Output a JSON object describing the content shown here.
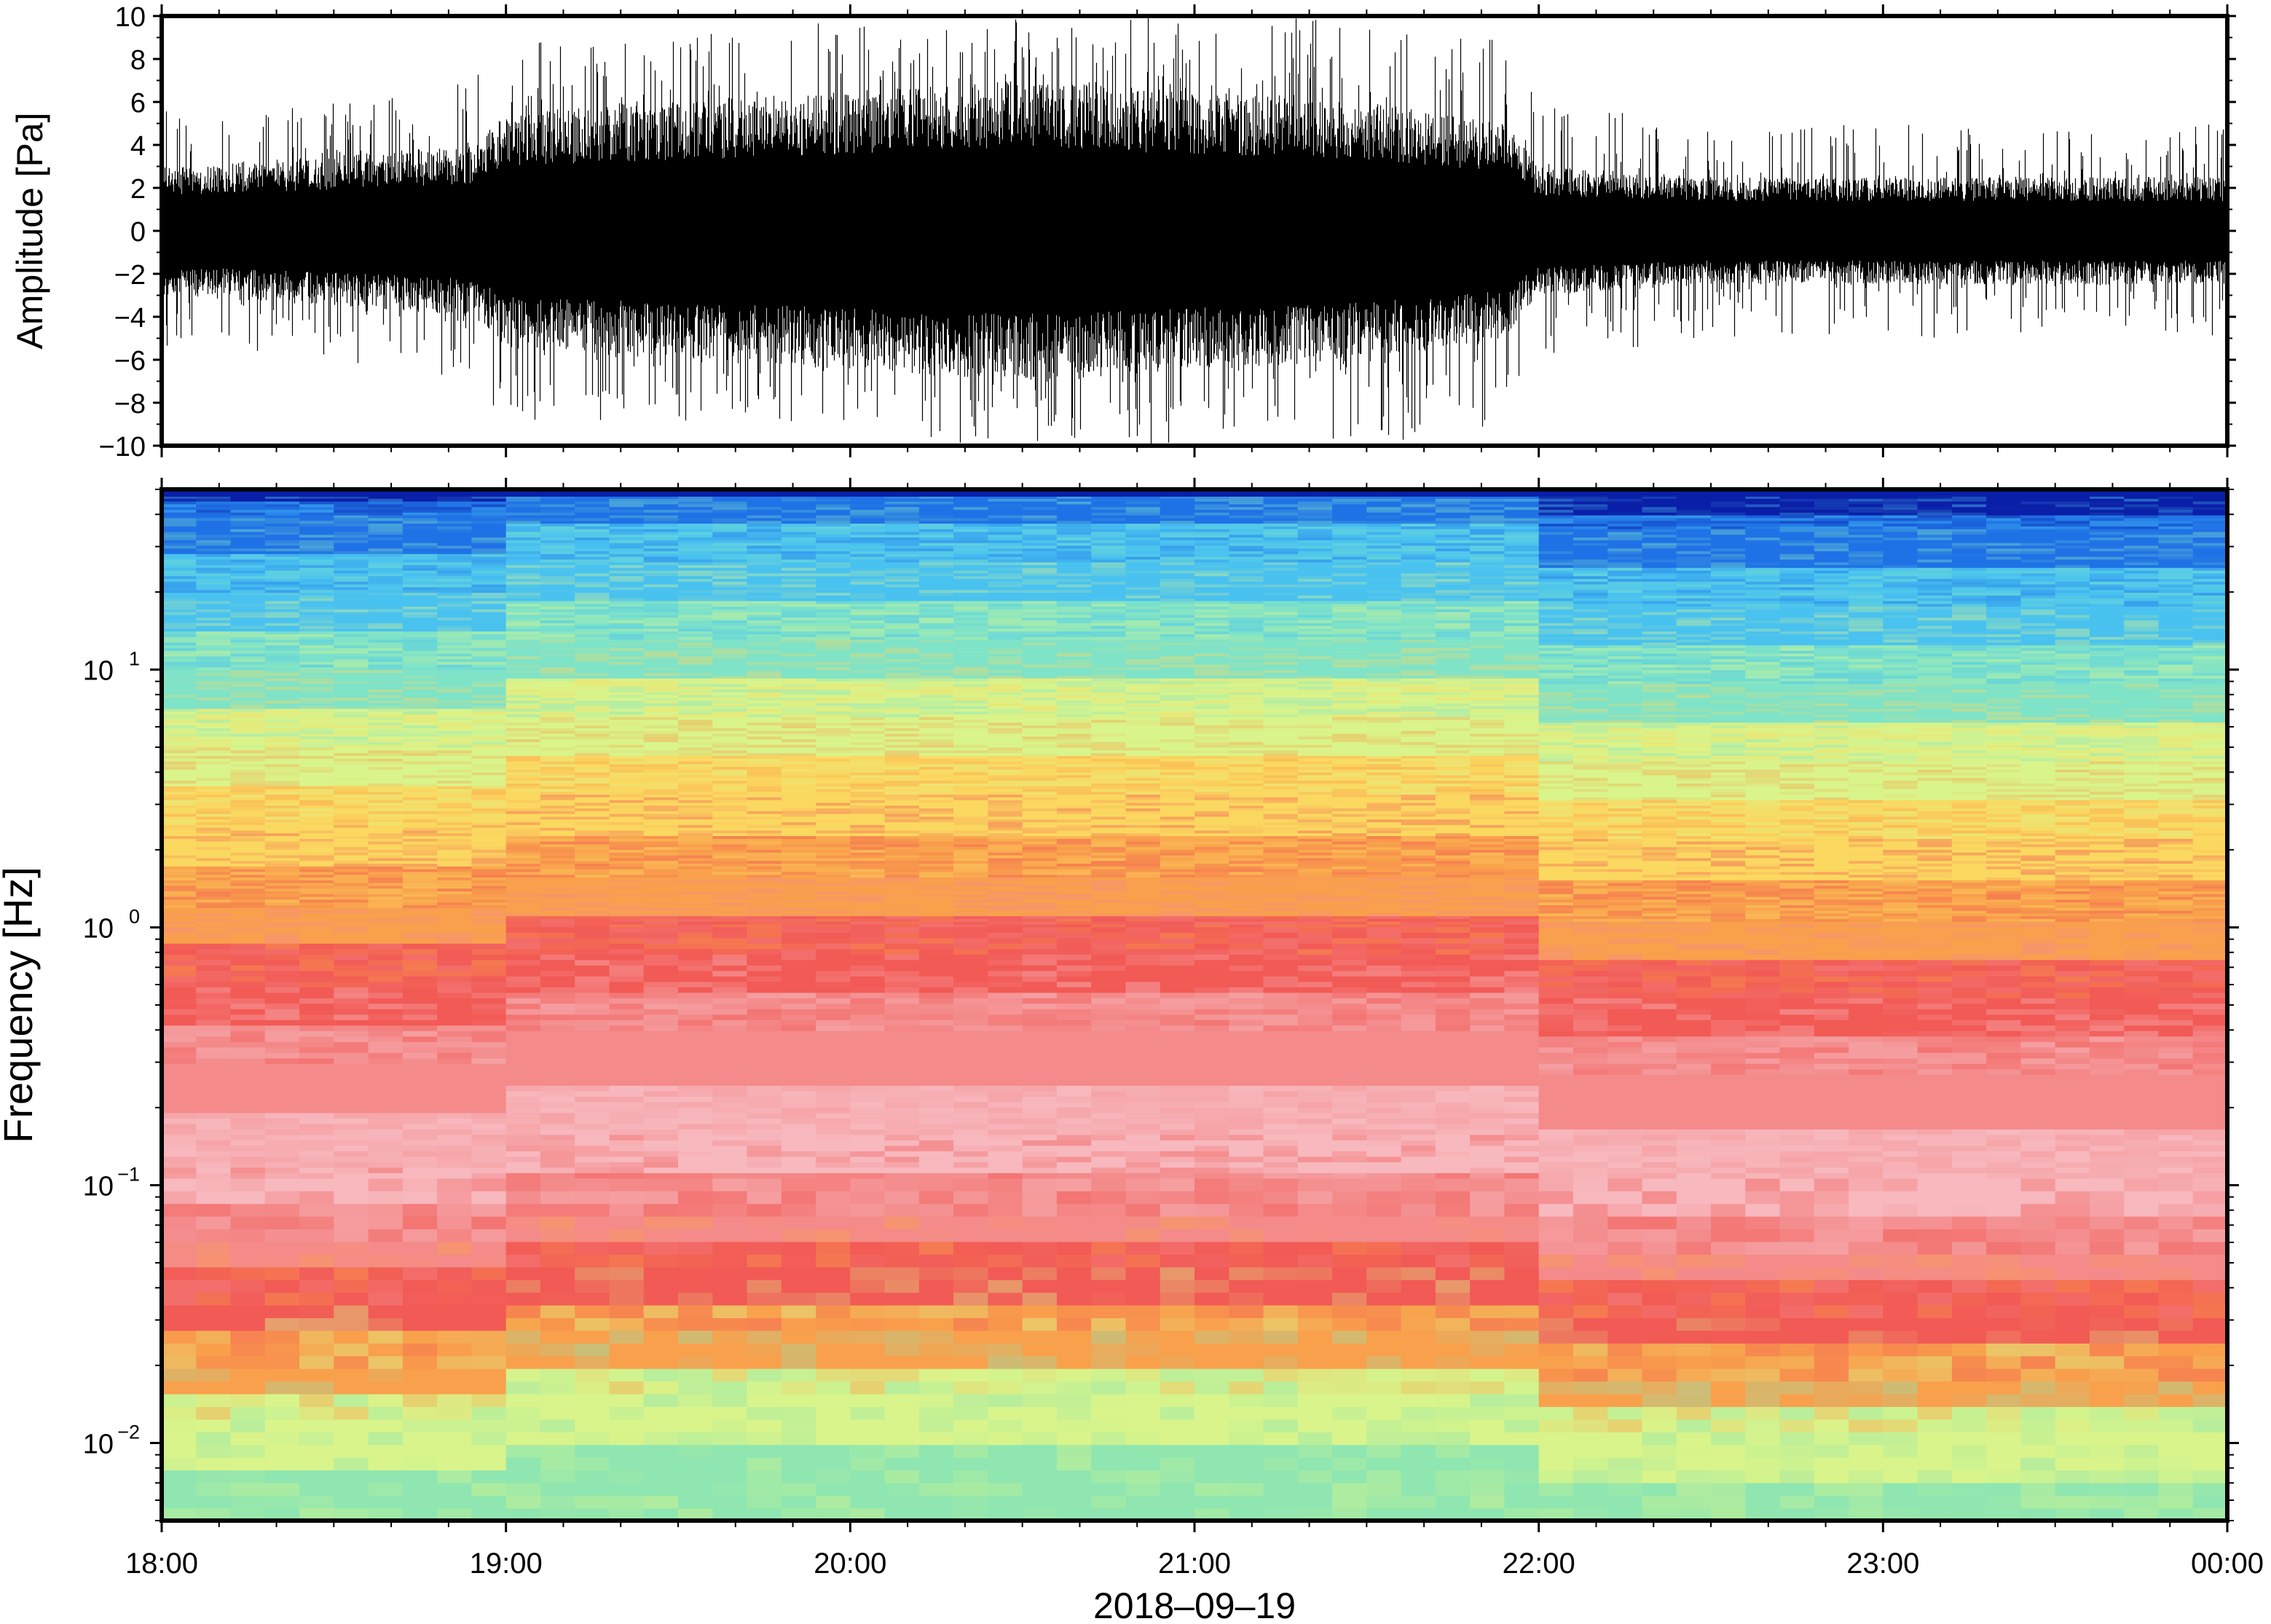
{
  "chart_data": [
    {
      "type": "line",
      "panel": "waveform",
      "ylabel": "Amplitude [Pa]",
      "ylim": [
        -10,
        10
      ],
      "y_ticks": [
        "10",
        "8",
        "6",
        "4",
        "2",
        "0",
        "−2",
        "−4",
        "−6",
        "−8",
        "−10"
      ],
      "y_tick_values": [
        10,
        8,
        6,
        4,
        2,
        0,
        -2,
        -4,
        -6,
        -8,
        -10
      ],
      "x_range_hours": [
        18,
        24
      ],
      "series": [
        {
          "color": "#000000",
          "envelope_hours": [
            18.0,
            18.5,
            18.9,
            19.0,
            19.5,
            20.0,
            20.5,
            21.0,
            21.5,
            21.9,
            22.0,
            22.5,
            23.0,
            23.5,
            24.0
          ],
          "envelope_amplitude": [
            3.0,
            3.5,
            4.0,
            5.5,
            6.0,
            6.5,
            7.0,
            6.5,
            6.0,
            5.0,
            3.0,
            2.5,
            2.5,
            2.5,
            2.5
          ],
          "peak_amplitude": [
            6,
            6,
            7,
            9,
            9,
            10,
            10,
            10,
            10,
            9,
            6,
            5,
            5,
            5,
            5
          ]
        }
      ],
      "grid": false
    },
    {
      "type": "heatmap",
      "panel": "spectrogram",
      "ylabel": "Frequency [Hz]",
      "xlabel": "2018–09–19",
      "y_scale": "log",
      "ylim": [
        0.005,
        50
      ],
      "y_ticks": [
        {
          "base": "10",
          "exp": "1"
        },
        {
          "base": "10",
          "exp": "0"
        },
        {
          "base": "10",
          "exp": "−1"
        },
        {
          "base": "10",
          "exp": "−2"
        }
      ],
      "y_tick_values": [
        10,
        1,
        0.1,
        0.01
      ],
      "x_ticks": [
        "18:00",
        "19:00",
        "20:00",
        "21:00",
        "22:00",
        "23:00",
        "00:00"
      ],
      "x_tick_values": [
        18,
        19,
        20,
        21,
        22,
        23,
        24
      ],
      "colormap": [
        "#0a1fa8",
        "#1f72e6",
        "#49c2f0",
        "#7fe3c8",
        "#d9f48a",
        "#fbd860",
        "#f9a04c",
        "#f25a55",
        "#f7b8be"
      ],
      "frequency_bands_hz": [
        0.005,
        0.012,
        0.02,
        0.035,
        0.06,
        0.12,
        0.3,
        0.6,
        1.2,
        2.5,
        5,
        10,
        20,
        40,
        50
      ],
      "band_colors": [
        "#8fe6b0",
        "#d9f48a",
        "#f9a04c",
        "#f25a55",
        "#f48a8a",
        "#f7b8be",
        "#f48a8a",
        "#f25a55",
        "#f9a04c",
        "#fbd860",
        "#d9f48a",
        "#7fe3c8",
        "#49c2f0",
        "#1f72e6",
        "#0a1fa8"
      ],
      "grid": false
    }
  ]
}
